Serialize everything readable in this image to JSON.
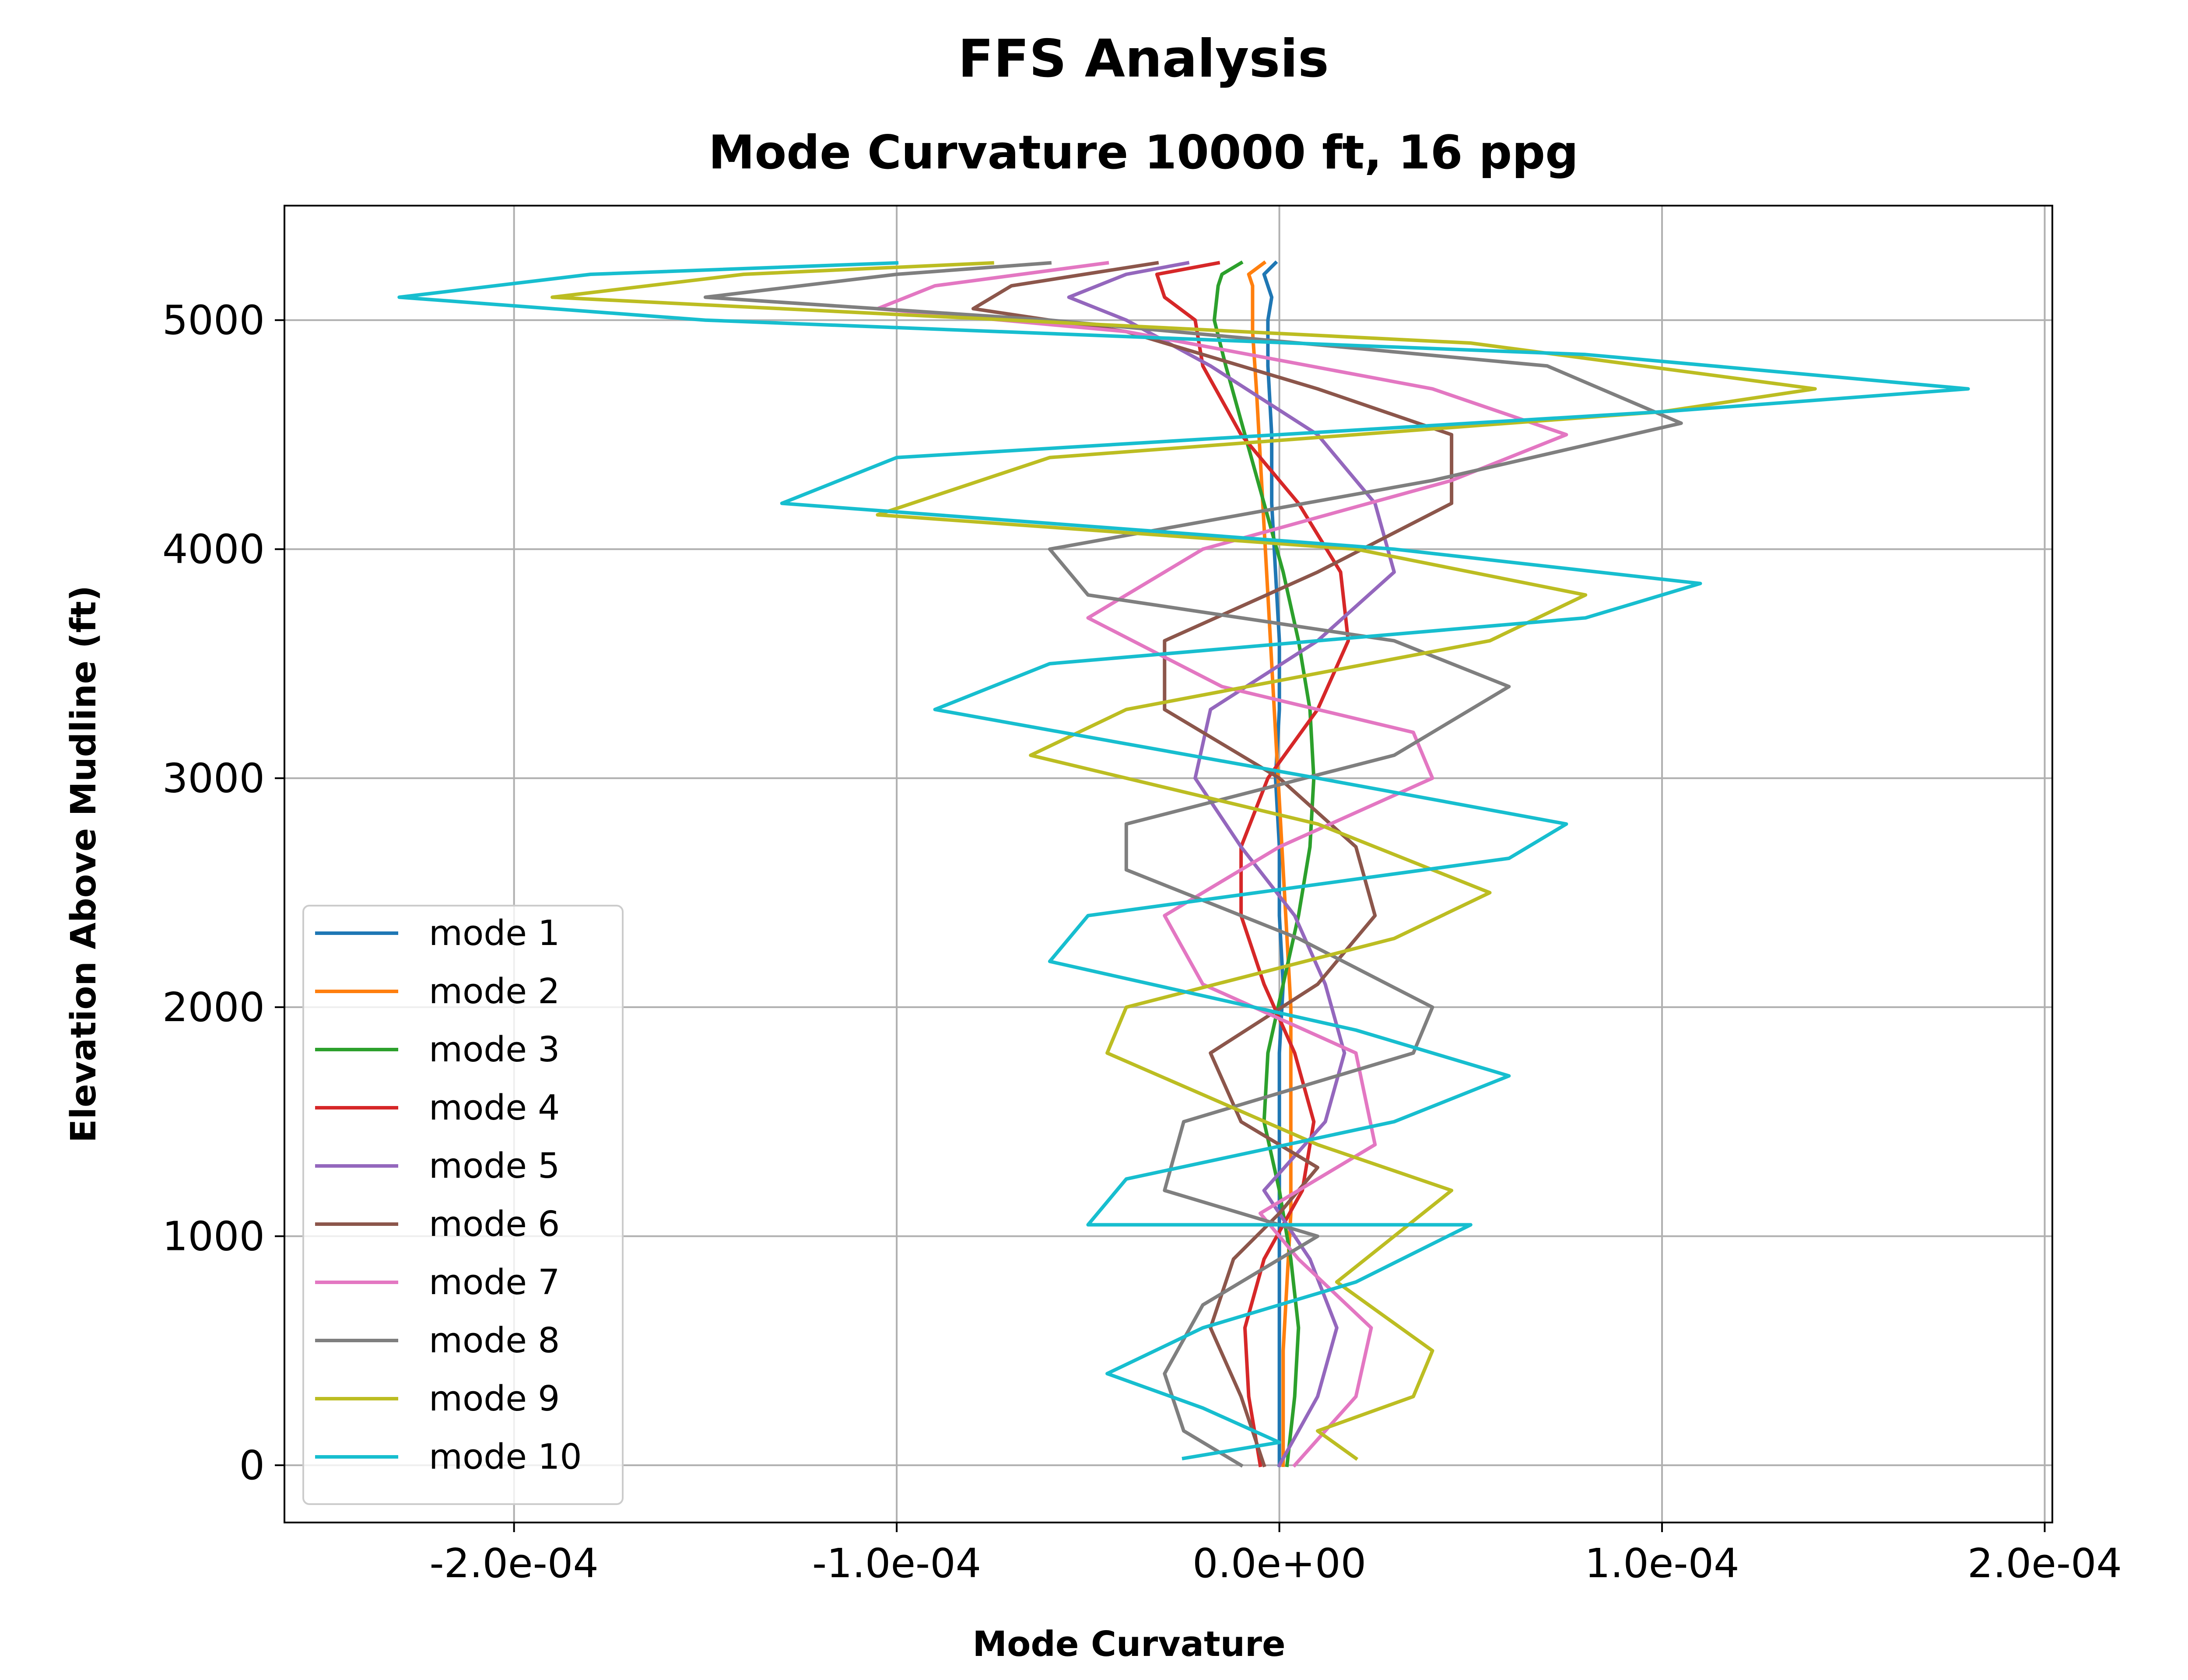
{
  "figure": {
    "suptitle": "FFS Analysis"
  },
  "chart_data": {
    "type": "line",
    "title": "Mode Curvature 10000 ft, 16 ppg",
    "xlabel": "Mode Curvature",
    "ylabel": "Elevation Above Mudline (ft)",
    "xlim": [
      -0.00026,
      0.000202
    ],
    "ylim": [
      -250,
      5500
    ],
    "xticks": [
      -0.0002,
      -0.0001,
      0.0,
      0.0001,
      0.0002
    ],
    "xtick_labels": [
      "-2.0e-04",
      "-1.0e-04",
      "0.0e+00",
      "1.0e-04",
      "2.0e-04"
    ],
    "yticks": [
      0,
      1000,
      2000,
      3000,
      4000,
      5000
    ],
    "ytick_labels": [
      "0",
      "1000",
      "2000",
      "3000",
      "4000",
      "5000"
    ],
    "grid": true,
    "legend_position": "lower-left",
    "series": [
      {
        "name": "mode 1",
        "color": "#1f77b4",
        "points": [
          [
            0.0,
            0
          ],
          [
            0.0,
            300
          ],
          [
            0.0,
            600
          ],
          [
            0.0,
            900
          ],
          [
            0.0,
            1200
          ],
          [
            0.0,
            1500
          ],
          [
            0.0,
            1800
          ],
          [
            1e-06,
            2100
          ],
          [
            0.0,
            2400
          ],
          [
            0.0,
            2700
          ],
          [
            -1e-06,
            3000
          ],
          [
            0.0,
            3300
          ],
          [
            0.0,
            3600
          ],
          [
            -1e-06,
            3900
          ],
          [
            -2e-06,
            4200
          ],
          [
            -2e-06,
            4500
          ],
          [
            -3e-06,
            4800
          ],
          [
            -3e-06,
            5000
          ],
          [
            -2e-06,
            5100
          ],
          [
            -4e-06,
            5200
          ],
          [
            -1e-06,
            5250
          ]
        ]
      },
      {
        "name": "mode 2",
        "color": "#ff7f0e",
        "points": [
          [
            1e-06,
            0
          ],
          [
            1e-06,
            200
          ],
          [
            1e-06,
            500
          ],
          [
            2e-06,
            800
          ],
          [
            3e-06,
            1100
          ],
          [
            3e-06,
            1400
          ],
          [
            3e-06,
            1700
          ],
          [
            3e-06,
            2000
          ],
          [
            2e-06,
            2300
          ],
          [
            1e-06,
            2600
          ],
          [
            0.0,
            2900
          ],
          [
            -1e-06,
            3200
          ],
          [
            -2e-06,
            3500
          ],
          [
            -3e-06,
            3800
          ],
          [
            -4e-06,
            4100
          ],
          [
            -5e-06,
            4400
          ],
          [
            -6e-06,
            4700
          ],
          [
            -7e-06,
            4950
          ],
          [
            -7e-06,
            5150
          ],
          [
            -8e-06,
            5200
          ],
          [
            -4e-06,
            5250
          ]
        ]
      },
      {
        "name": "mode 3",
        "color": "#2ca02c",
        "points": [
          [
            2e-06,
            0
          ],
          [
            4e-06,
            300
          ],
          [
            5e-06,
            600
          ],
          [
            3e-06,
            900
          ],
          [
            0.0,
            1200
          ],
          [
            -4e-06,
            1500
          ],
          [
            -3e-06,
            1800
          ],
          [
            1e-06,
            2100
          ],
          [
            5e-06,
            2400
          ],
          [
            8e-06,
            2700
          ],
          [
            9e-06,
            3000
          ],
          [
            8e-06,
            3300
          ],
          [
            5e-06,
            3600
          ],
          [
            1e-06,
            3900
          ],
          [
            -4e-06,
            4200
          ],
          [
            -9e-06,
            4500
          ],
          [
            -1.4e-05,
            4800
          ],
          [
            -1.7e-05,
            5000
          ],
          [
            -1.6e-05,
            5150
          ],
          [
            -1.5e-05,
            5200
          ],
          [
            -1e-05,
            5250
          ]
        ]
      },
      {
        "name": "mode 4",
        "color": "#d62728",
        "points": [
          [
            -5e-06,
            0
          ],
          [
            -8e-06,
            300
          ],
          [
            -9e-06,
            600
          ],
          [
            -4e-06,
            900
          ],
          [
            6e-06,
            1200
          ],
          [
            9e-06,
            1500
          ],
          [
            4e-06,
            1800
          ],
          [
            -4e-06,
            2100
          ],
          [
            -1e-05,
            2400
          ],
          [
            -1e-05,
            2700
          ],
          [
            -3e-06,
            3000
          ],
          [
            1e-05,
            3300
          ],
          [
            1.8e-05,
            3600
          ],
          [
            1.6e-05,
            3900
          ],
          [
            5e-06,
            4200
          ],
          [
            -1e-05,
            4500
          ],
          [
            -2e-05,
            4800
          ],
          [
            -2.2e-05,
            5000
          ],
          [
            -3e-05,
            5100
          ],
          [
            -3.2e-05,
            5200
          ],
          [
            -1.6e-05,
            5250
          ]
        ]
      },
      {
        "name": "mode 5",
        "color": "#9467bd",
        "points": [
          [
            0.0,
            0
          ],
          [
            1e-05,
            300
          ],
          [
            1.5e-05,
            600
          ],
          [
            8e-06,
            900
          ],
          [
            -4e-06,
            1200
          ],
          [
            1.2e-05,
            1500
          ],
          [
            1.7e-05,
            1800
          ],
          [
            1.2e-05,
            2100
          ],
          [
            4e-06,
            2400
          ],
          [
            -1e-05,
            2700
          ],
          [
            -2.2e-05,
            3000
          ],
          [
            -1.8e-05,
            3300
          ],
          [
            1e-05,
            3600
          ],
          [
            3e-05,
            3900
          ],
          [
            2.5e-05,
            4200
          ],
          [
            1e-05,
            4500
          ],
          [
            -1.8e-05,
            4800
          ],
          [
            -4e-05,
            5000
          ],
          [
            -5.5e-05,
            5100
          ],
          [
            -4e-05,
            5200
          ],
          [
            -2.4e-05,
            5250
          ]
        ]
      },
      {
        "name": "mode 6",
        "color": "#8c564b",
        "points": [
          [
            -4e-06,
            0
          ],
          [
            -1e-05,
            300
          ],
          [
            -1.8e-05,
            600
          ],
          [
            -1.2e-05,
            900
          ],
          [
            0.0,
            1100
          ],
          [
            1e-05,
            1300
          ],
          [
            -1e-05,
            1500
          ],
          [
            -1.8e-05,
            1800
          ],
          [
            1e-05,
            2100
          ],
          [
            2.5e-05,
            2400
          ],
          [
            2e-05,
            2700
          ],
          [
            0.0,
            3000
          ],
          [
            -3e-05,
            3300
          ],
          [
            -3e-05,
            3600
          ],
          [
            1e-05,
            3900
          ],
          [
            4.5e-05,
            4200
          ],
          [
            4.5e-05,
            4500
          ],
          [
            1e-05,
            4700
          ],
          [
            -4e-05,
            4950
          ],
          [
            -8e-05,
            5050
          ],
          [
            -7e-05,
            5150
          ],
          [
            -3.2e-05,
            5250
          ]
        ]
      },
      {
        "name": "mode 7",
        "color": "#e377c2",
        "points": [
          [
            4e-06,
            0
          ],
          [
            2e-05,
            300
          ],
          [
            2.4e-05,
            600
          ],
          [
            5e-06,
            900
          ],
          [
            -5e-06,
            1100
          ],
          [
            2.5e-05,
            1400
          ],
          [
            2e-05,
            1800
          ],
          [
            -2e-05,
            2100
          ],
          [
            -3e-05,
            2400
          ],
          [
            0.0,
            2700
          ],
          [
            4e-05,
            3000
          ],
          [
            3.5e-05,
            3200
          ],
          [
            -1.5e-05,
            3400
          ],
          [
            -5e-05,
            3700
          ],
          [
            -2e-05,
            4000
          ],
          [
            4.5e-05,
            4300
          ],
          [
            7.5e-05,
            4500
          ],
          [
            4e-05,
            4700
          ],
          [
            -4e-05,
            4950
          ],
          [
            -0.000105,
            5050
          ],
          [
            -9e-05,
            5150
          ],
          [
            -4.5e-05,
            5250
          ]
        ]
      },
      {
        "name": "mode 8",
        "color": "#7f7f7f",
        "points": [
          [
            -1e-05,
            0
          ],
          [
            -2.5e-05,
            150
          ],
          [
            -3e-05,
            400
          ],
          [
            -2e-05,
            700
          ],
          [
            1e-05,
            1000
          ],
          [
            -3e-05,
            1200
          ],
          [
            -2.5e-05,
            1500
          ],
          [
            3.5e-05,
            1800
          ],
          [
            4e-05,
            2000
          ],
          [
            5e-06,
            2300
          ],
          [
            -4e-05,
            2600
          ],
          [
            -4e-05,
            2800
          ],
          [
            3e-05,
            3100
          ],
          [
            6e-05,
            3400
          ],
          [
            3e-05,
            3600
          ],
          [
            -5e-05,
            3800
          ],
          [
            -6e-05,
            4000
          ],
          [
            4e-05,
            4300
          ],
          [
            0.000105,
            4550
          ],
          [
            7e-05,
            4800
          ],
          [
            -6e-05,
            5000
          ],
          [
            -0.00015,
            5100
          ],
          [
            -0.0001,
            5200
          ],
          [
            -6e-05,
            5250
          ]
        ]
      },
      {
        "name": "mode 9",
        "color": "#bcbd22",
        "points": [
          [
            2e-05,
            30
          ],
          [
            1e-05,
            150
          ],
          [
            3.5e-05,
            300
          ],
          [
            4e-05,
            500
          ],
          [
            1.5e-05,
            800
          ],
          [
            4.5e-05,
            1200
          ],
          [
            1e-05,
            1400
          ],
          [
            -4.5e-05,
            1800
          ],
          [
            -4e-05,
            2000
          ],
          [
            3e-05,
            2300
          ],
          [
            5.5e-05,
            2500
          ],
          [
            1e-05,
            2800
          ],
          [
            -6.5e-05,
            3100
          ],
          [
            -4e-05,
            3300
          ],
          [
            5.5e-05,
            3600
          ],
          [
            8e-05,
            3800
          ],
          [
            2e-05,
            4000
          ],
          [
            -0.000105,
            4150
          ],
          [
            -6e-05,
            4400
          ],
          [
            0.0001,
            4600
          ],
          [
            0.00014,
            4700
          ],
          [
            5e-05,
            4900
          ],
          [
            -0.00013,
            5050
          ],
          [
            -0.00019,
            5100
          ],
          [
            -0.00014,
            5200
          ],
          [
            -7.5e-05,
            5250
          ]
        ]
      },
      {
        "name": "mode 10",
        "color": "#17becf",
        "points": [
          [
            -2.5e-05,
            30
          ],
          [
            0.0,
            100
          ],
          [
            -2e-05,
            250
          ],
          [
            -4.5e-05,
            400
          ],
          [
            -2e-05,
            600
          ],
          [
            2e-05,
            800
          ],
          [
            5e-05,
            1050
          ],
          [
            -5e-05,
            1050
          ],
          [
            -4e-05,
            1250
          ],
          [
            3e-05,
            1500
          ],
          [
            6e-05,
            1700
          ],
          [
            2e-05,
            1900
          ],
          [
            -6e-05,
            2200
          ],
          [
            -5e-05,
            2400
          ],
          [
            6e-05,
            2650
          ],
          [
            7.5e-05,
            2800
          ],
          [
            1e-05,
            3000
          ],
          [
            -9e-05,
            3300
          ],
          [
            -6e-05,
            3500
          ],
          [
            8e-05,
            3700
          ],
          [
            0.00011,
            3850
          ],
          [
            3e-05,
            4000
          ],
          [
            -0.00013,
            4200
          ],
          [
            -0.0001,
            4400
          ],
          [
            0.0001,
            4600
          ],
          [
            0.00018,
            4700
          ],
          [
            8e-05,
            4850
          ],
          [
            -0.00015,
            5000
          ],
          [
            -0.00023,
            5100
          ],
          [
            -0.00018,
            5200
          ],
          [
            -0.0001,
            5250
          ]
        ]
      }
    ]
  }
}
